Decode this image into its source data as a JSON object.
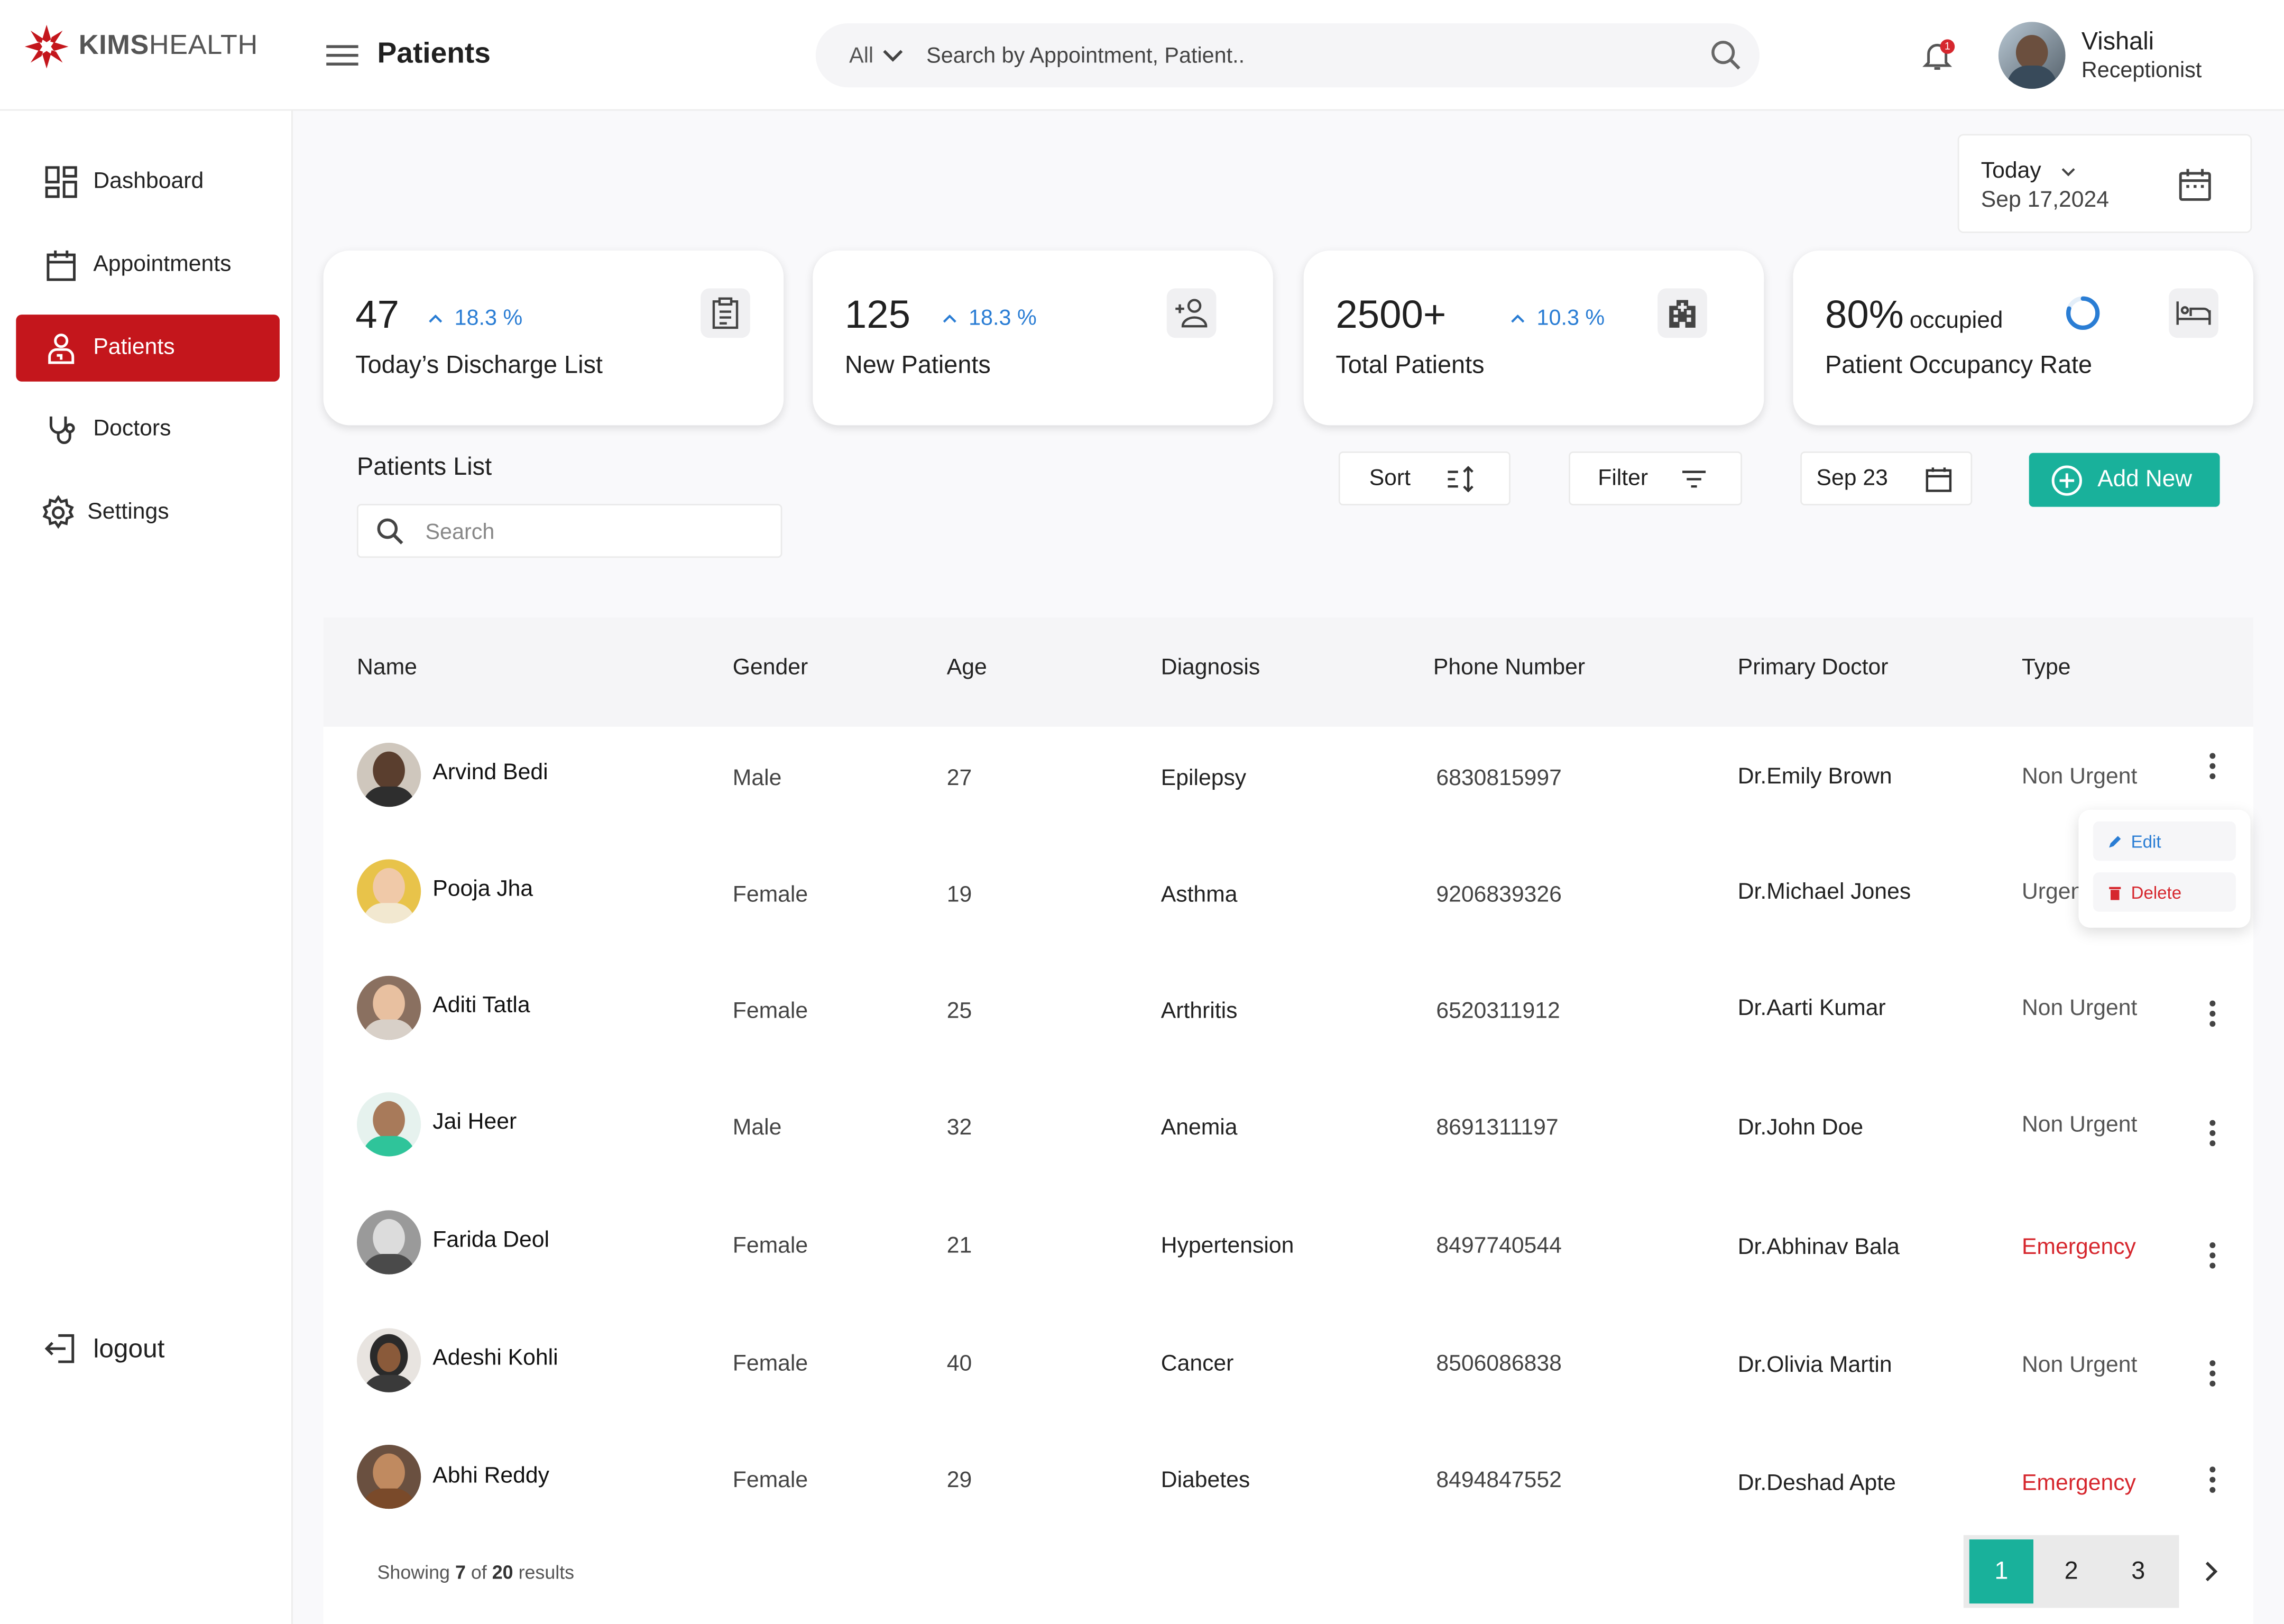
{
  "header": {
    "logo_bold": "KIMS",
    "logo_light": "HEALTH",
    "page_title": "Patients",
    "search_scope": "All",
    "search_placeholder": "Search by Appointment, Patient..",
    "notification_count": "1",
    "user_name": "Vishali",
    "user_role": "Receptionist"
  },
  "sidebar": {
    "items": [
      {
        "label": "Dashboard",
        "icon": "dashboard-icon"
      },
      {
        "label": "Appointments",
        "icon": "calendar-icon"
      },
      {
        "label": "Patients",
        "icon": "patient-icon",
        "active": true
      },
      {
        "label": "Doctors",
        "icon": "stethoscope-icon"
      },
      {
        "label": "Settings",
        "icon": "gear-icon"
      }
    ],
    "logout_label": "logout"
  },
  "date_widget": {
    "label": "Today",
    "date": "Sep 17,2024"
  },
  "stats": [
    {
      "value": "47",
      "change": "18.3 %",
      "label": "Today’s Discharge List",
      "icon": "clipboard-icon"
    },
    {
      "value": "125",
      "change": "18.3 %",
      "label": "New Patients",
      "icon": "add-user-icon"
    },
    {
      "value": "2500+",
      "change": "10.3 %",
      "label": "Total Patients",
      "icon": "hospital-icon"
    },
    {
      "value": "80%",
      "suffix": "occupied",
      "label": "Patient Occupancy Rate",
      "icon": "bed-icon",
      "occupancy": 0.8
    }
  ],
  "list": {
    "title": "Patients List",
    "search_placeholder": "Search",
    "sort_label": "Sort",
    "filter_label": "Filter",
    "date_label": "Sep 23",
    "add_label": "Add New"
  },
  "table": {
    "columns": [
      "Name",
      "Gender",
      "Age",
      "Diagnosis",
      "Phone Number",
      "Primary Doctor",
      "Type"
    ],
    "rows": [
      {
        "name": "Arvind Bedi",
        "gender": "Male",
        "age": "27",
        "diagnosis": "Epilepsy",
        "phone": "6830815997",
        "doctor": "Dr.Emily Brown",
        "type": "Non Urgent"
      },
      {
        "name": "Pooja Jha",
        "gender": "Female",
        "age": "19",
        "diagnosis": "Asthma",
        "phone": "9206839326",
        "doctor": "Dr.Michael Jones",
        "type": "Urgent"
      },
      {
        "name": "Aditi Tatla",
        "gender": "Female",
        "age": "25",
        "diagnosis": "Arthritis",
        "phone": "6520311912",
        "doctor": "Dr.Aarti Kumar",
        "type": "Non Urgent"
      },
      {
        "name": "Jai Heer",
        "gender": "Male",
        "age": "32",
        "diagnosis": "Anemia",
        "phone": "8691311197",
        "doctor": "Dr.John Doe",
        "type": "Non Urgent"
      },
      {
        "name": "Farida Deol",
        "gender": "Female",
        "age": "21",
        "diagnosis": "Hypertension",
        "phone": "8497740544",
        "doctor": "Dr.Abhinav Bala",
        "type": "Emergency"
      },
      {
        "name": "Adeshi Kohli",
        "gender": "Female",
        "age": "40",
        "diagnosis": "Cancer",
        "phone": "8506086838",
        "doctor": "Dr.Olivia Martin",
        "type": "Non Urgent"
      },
      {
        "name": "Abhi Reddy",
        "gender": "Female",
        "age": "29",
        "diagnosis": "Diabetes",
        "phone": "8494847552",
        "doctor": "Dr.Deshad Apte",
        "type": "Emergency"
      }
    ],
    "footer": {
      "prefix": "Showing",
      "shown": "7",
      "of": "of",
      "total": "20",
      "suffix": "results"
    },
    "pages": [
      "1",
      "2",
      "3"
    ],
    "current_page": "1"
  },
  "context_menu": {
    "edit_label": "Edit",
    "delete_label": "Delete"
  },
  "colors": {
    "brand_red": "#c4161c",
    "accent_teal": "#19b19b",
    "change_blue": "#2a7dd4",
    "emergency_red": "#d6272e"
  }
}
